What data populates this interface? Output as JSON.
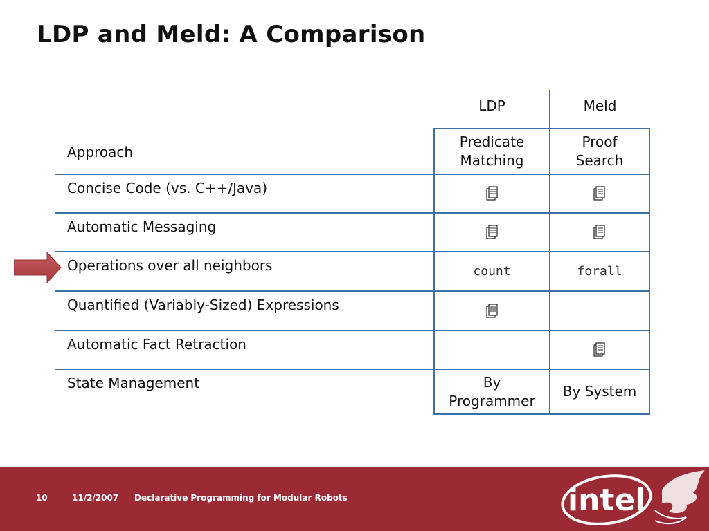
{
  "slide": {
    "title": "LDP and Meld: A Comparison"
  },
  "table": {
    "columns": [
      "LDP",
      "Meld"
    ],
    "rows": [
      {
        "label": "Approach",
        "ldp": "Predicate Matching",
        "meld": "Proof Search"
      },
      {
        "label": "Concise Code (vs. C++/Java)",
        "ldp": "",
        "meld": ""
      },
      {
        "label": "Automatic Messaging",
        "ldp": "",
        "meld": ""
      },
      {
        "label": "Operations over all neighbors",
        "ldp": "count",
        "meld": "forall"
      },
      {
        "label": "Quantified (Variably-Sized) Expressions",
        "ldp": "",
        "meld": ""
      },
      {
        "label": "Automatic Fact Retraction",
        "ldp": "",
        "meld": ""
      },
      {
        "label": "State Management",
        "ldp": "By Programmer",
        "meld": "By System"
      }
    ],
    "check_icon": "clipboard-check-icon",
    "highlighted_row": "Operations over all neighbors"
  },
  "footer": {
    "page_number": "10",
    "date": "11/2/2007",
    "text": "Declarative Programming for Modular Robots",
    "logo_text": "intel"
  },
  "colors": {
    "footer_bg": "#9b2a35",
    "grid": "#3d6fa8",
    "arrow": "#b6454a"
  }
}
